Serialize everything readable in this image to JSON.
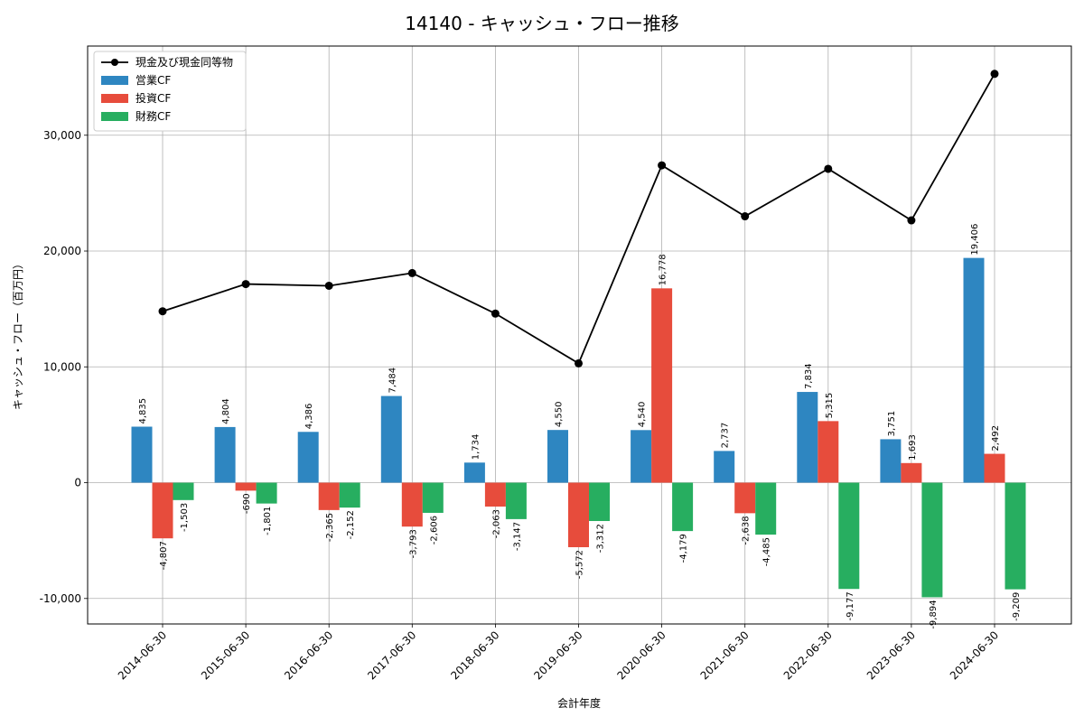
{
  "chart_data": {
    "type": "bar",
    "title": "14140 - キャッシュ・フロー推移",
    "xlabel": "会計年度",
    "ylabel": "キャッシュ・フロー（百万円）",
    "categories": [
      "2014-06-30",
      "2015-06-30",
      "2016-06-30",
      "2017-06-30",
      "2018-06-30",
      "2019-06-30",
      "2020-06-30",
      "2021-06-30",
      "2022-06-30",
      "2023-06-30",
      "2024-06-30"
    ],
    "yticks": [
      -10000,
      0,
      10000,
      20000,
      30000
    ],
    "ytick_labels": [
      "-10,000",
      "0",
      "10,000",
      "20,000",
      "30,000"
    ],
    "ylim": [
      -12200,
      37700
    ],
    "grid": true,
    "legend_position": "top-left",
    "series": [
      {
        "name": "営業CF",
        "kind": "bar",
        "color": "#2e86c1",
        "values": [
          4835,
          4804,
          4386,
          7484,
          1734,
          4550,
          4540,
          2737,
          7834,
          3751,
          19406
        ],
        "labels": [
          "4,835",
          "4,804",
          "4,386",
          "7,484",
          "1,734",
          "4,550",
          "4,540",
          "2,737",
          "7,834",
          "3,751",
          "19,406"
        ]
      },
      {
        "name": "投資CF",
        "kind": "bar",
        "color": "#e74c3c",
        "values": [
          -4807,
          -690,
          -2365,
          -3793,
          -2063,
          -5572,
          16778,
          -2638,
          5315,
          1693,
          2492
        ],
        "labels": [
          "-4,807",
          "-690",
          "-2,365",
          "-3,793",
          "-2,063",
          "-5,572",
          "16,778",
          "-2,638",
          "5,315",
          "1,693",
          "2,492"
        ]
      },
      {
        "name": "財務CF",
        "kind": "bar",
        "color": "#27ae60",
        "values": [
          -1503,
          -1801,
          -2152,
          -2606,
          -3147,
          -3312,
          -4179,
          -4485,
          -9177,
          -9894,
          -9209
        ],
        "labels": [
          "-1,503",
          "-1,801",
          "-2,152",
          "-2,606",
          "-3,147",
          "-3,312",
          "-4,179",
          "-4,485",
          "-9,177",
          "-9,894",
          "-9,209"
        ]
      },
      {
        "name": "現金及び現金同等物",
        "kind": "line",
        "color": "#000000",
        "values": [
          14800,
          17150,
          17000,
          18100,
          14600,
          10300,
          27400,
          23000,
          27100,
          22650,
          35300
        ]
      }
    ]
  }
}
